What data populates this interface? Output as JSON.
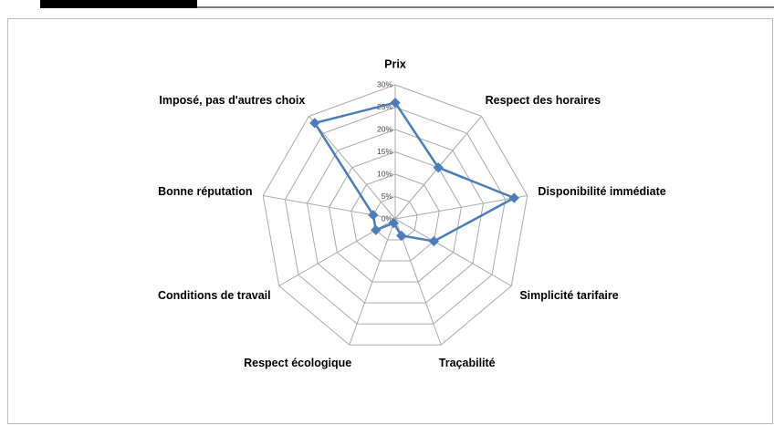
{
  "chart_data": {
    "type": "radar",
    "categories": [
      "Prix",
      "Respect des horaires",
      "Disponibilité immédiate",
      "Simplicité tarifaire",
      "Traçabilité",
      "Respect écologique",
      "Conditions de travail",
      "Bonne réputation",
      "Imposé, pas d'autres choix"
    ],
    "values": [
      26,
      15,
      27,
      10,
      4,
      1,
      5,
      5,
      28
    ],
    "color": "#4a7ebb",
    "rlim": [
      0,
      30
    ],
    "rticks": [
      {
        "value": 0,
        "label": "0%"
      },
      {
        "value": 5,
        "label": "5%"
      },
      {
        "value": 10,
        "label": "10%"
      },
      {
        "value": 15,
        "label": "15%"
      },
      {
        "value": 20,
        "label": "20%"
      },
      {
        "value": 25,
        "label": "25%"
      },
      {
        "value": 30,
        "label": "30%"
      }
    ],
    "grid": true
  }
}
